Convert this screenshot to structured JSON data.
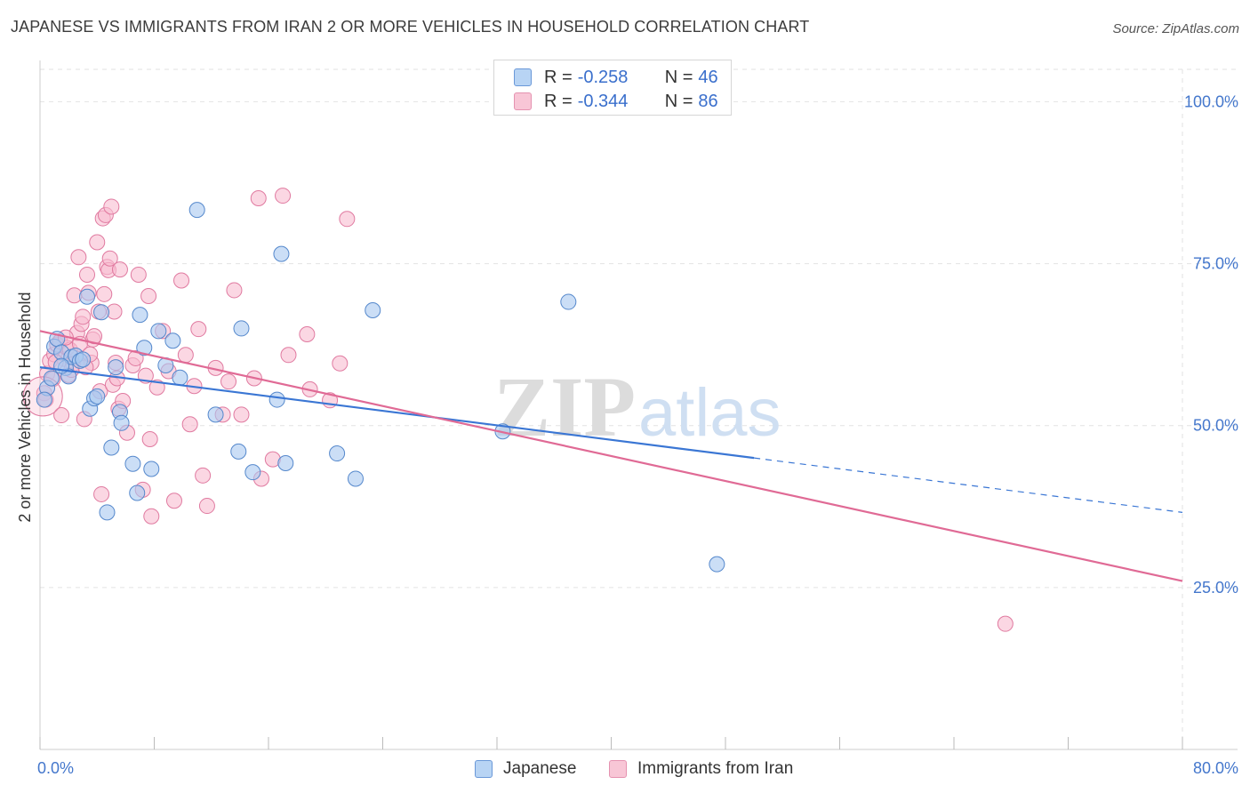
{
  "title": "JAPANESE VS IMMIGRANTS FROM IRAN 2 OR MORE VEHICLES IN HOUSEHOLD CORRELATION CHART",
  "source": "Source: ZipAtlas.com",
  "watermark": {
    "zip": "ZIP",
    "atlas": "atlas"
  },
  "legend": {
    "rows": [
      {
        "r_label": "R = ",
        "r_value": "-0.258",
        "n_label": "N = ",
        "n_value": "46"
      },
      {
        "r_label": "R = ",
        "r_value": "-0.344",
        "n_label": "N = ",
        "n_value": "86"
      }
    ]
  },
  "bottom_legend": {
    "japanese": "Japanese",
    "iran": "Immigrants from Iran"
  },
  "colors": {
    "japanese_fill": "#a8c8f0",
    "japanese_stroke": "#5588cc",
    "japanese_line": "#3a76d4",
    "iran_fill": "#f8bcd0",
    "iran_stroke": "#e07aa0",
    "iran_line": "#e06a95",
    "tick_text": "#4477cc",
    "grid": "#e2e2e2"
  },
  "chart_data": {
    "type": "scatter",
    "xlabel": "",
    "ylabel": "2 or more Vehicles in Household",
    "xlim": [
      0,
      80
    ],
    "ylim": [
      0,
      105
    ],
    "x_tick_labels": [
      "0.0%",
      "80.0%"
    ],
    "y_ticks": [
      25,
      50,
      75,
      100
    ],
    "y_tick_labels": [
      "25.0%",
      "50.0%",
      "75.0%",
      "100.0%"
    ],
    "grid": true,
    "legend_position": "top-center",
    "series": [
      {
        "name": "Japanese",
        "r": -0.258,
        "n": 46,
        "trend": {
          "x0": 0,
          "y0": 59.0,
          "x1": 50,
          "y1": 45.0,
          "dashed_to_x": 80,
          "dashed_y": 36.6
        },
        "points": [
          [
            0.5,
            55.8
          ],
          [
            0.8,
            57.3
          ],
          [
            1.0,
            62.2
          ],
          [
            1.2,
            63.4
          ],
          [
            1.5,
            61.3
          ],
          [
            1.8,
            58.9
          ],
          [
            2.0,
            57.6
          ],
          [
            2.2,
            60.6
          ],
          [
            2.5,
            60.8
          ],
          [
            2.8,
            60.0
          ],
          [
            3.0,
            60.2
          ],
          [
            3.3,
            69.9
          ],
          [
            3.5,
            52.6
          ],
          [
            3.8,
            54.2
          ],
          [
            4.0,
            54.5
          ],
          [
            4.3,
            67.5
          ],
          [
            4.7,
            36.6
          ],
          [
            5.0,
            46.6
          ],
          [
            5.3,
            59.0
          ],
          [
            5.6,
            52.1
          ],
          [
            5.7,
            50.4
          ],
          [
            6.5,
            44.1
          ],
          [
            6.8,
            39.6
          ],
          [
            7.0,
            67.1
          ],
          [
            7.3,
            62.0
          ],
          [
            7.8,
            43.3
          ],
          [
            8.3,
            64.6
          ],
          [
            8.8,
            59.3
          ],
          [
            9.3,
            63.1
          ],
          [
            9.8,
            57.4
          ],
          [
            11.0,
            83.3
          ],
          [
            12.3,
            51.7
          ],
          [
            13.9,
            46.0
          ],
          [
            14.1,
            65.0
          ],
          [
            14.9,
            42.8
          ],
          [
            16.6,
            54.0
          ],
          [
            16.9,
            76.5
          ],
          [
            17.2,
            44.2
          ],
          [
            20.8,
            45.7
          ],
          [
            22.1,
            41.8
          ],
          [
            23.3,
            67.8
          ],
          [
            32.4,
            49.1
          ],
          [
            37.0,
            69.1
          ],
          [
            47.4,
            28.6
          ],
          [
            1.5,
            59.2
          ],
          [
            0.3,
            54.0
          ]
        ]
      },
      {
        "name": "Immigrants from Iran",
        "r": -0.344,
        "n": 86,
        "trend": {
          "x0": 0,
          "y0": 64.6,
          "x1": 80,
          "y1": 26.0
        },
        "points": [
          [
            0.3,
            55.0
          ],
          [
            0.5,
            58.0
          ],
          [
            0.7,
            60.0
          ],
          [
            1.0,
            61.0
          ],
          [
            1.2,
            62.5
          ],
          [
            1.4,
            63.0
          ],
          [
            1.5,
            51.6
          ],
          [
            1.7,
            60.3
          ],
          [
            1.9,
            62.0
          ],
          [
            2.1,
            61.7
          ],
          [
            2.3,
            59.5
          ],
          [
            2.4,
            70.1
          ],
          [
            2.6,
            64.3
          ],
          [
            2.7,
            76.0
          ],
          [
            2.9,
            65.7
          ],
          [
            3.0,
            66.8
          ],
          [
            3.1,
            51.0
          ],
          [
            3.3,
            73.3
          ],
          [
            3.4,
            70.5
          ],
          [
            3.6,
            59.7
          ],
          [
            3.7,
            63.3
          ],
          [
            3.8,
            63.8
          ],
          [
            4.0,
            78.3
          ],
          [
            4.1,
            67.6
          ],
          [
            4.2,
            55.3
          ],
          [
            4.3,
            39.4
          ],
          [
            4.4,
            82.0
          ],
          [
            4.5,
            70.3
          ],
          [
            4.6,
            82.5
          ],
          [
            4.7,
            74.5
          ],
          [
            4.8,
            74.0
          ],
          [
            4.9,
            75.8
          ],
          [
            5.0,
            83.8
          ],
          [
            5.1,
            56.3
          ],
          [
            5.2,
            67.6
          ],
          [
            5.3,
            59.7
          ],
          [
            5.4,
            57.3
          ],
          [
            5.5,
            52.6
          ],
          [
            5.6,
            74.1
          ],
          [
            5.8,
            53.8
          ],
          [
            6.1,
            48.9
          ],
          [
            6.5,
            59.3
          ],
          [
            6.7,
            60.4
          ],
          [
            6.9,
            73.3
          ],
          [
            7.2,
            40.1
          ],
          [
            7.4,
            57.7
          ],
          [
            7.6,
            70.0
          ],
          [
            7.7,
            47.9
          ],
          [
            7.8,
            36.0
          ],
          [
            8.2,
            55.9
          ],
          [
            8.6,
            64.6
          ],
          [
            9.0,
            58.4
          ],
          [
            9.4,
            38.4
          ],
          [
            9.9,
            72.4
          ],
          [
            10.2,
            60.9
          ],
          [
            10.5,
            50.2
          ],
          [
            10.8,
            56.1
          ],
          [
            11.1,
            64.9
          ],
          [
            11.4,
            42.3
          ],
          [
            11.7,
            37.6
          ],
          [
            12.3,
            58.9
          ],
          [
            12.8,
            51.7
          ],
          [
            13.2,
            56.8
          ],
          [
            13.6,
            70.9
          ],
          [
            14.1,
            51.7
          ],
          [
            15.0,
            57.3
          ],
          [
            15.3,
            85.1
          ],
          [
            15.5,
            41.8
          ],
          [
            16.3,
            44.8
          ],
          [
            17.0,
            85.5
          ],
          [
            17.4,
            60.9
          ],
          [
            18.7,
            64.1
          ],
          [
            18.9,
            55.6
          ],
          [
            20.3,
            53.9
          ],
          [
            21.0,
            59.6
          ],
          [
            21.5,
            81.9
          ],
          [
            1.8,
            63.6
          ],
          [
            2.0,
            57.8
          ],
          [
            2.8,
            62.6
          ],
          [
            3.2,
            59.0
          ],
          [
            0.9,
            57.2
          ],
          [
            1.1,
            59.8
          ],
          [
            3.5,
            61.0
          ],
          [
            2.2,
            58.6
          ],
          [
            67.6,
            19.4
          ],
          [
            0.4,
            54.0
          ]
        ]
      }
    ]
  }
}
